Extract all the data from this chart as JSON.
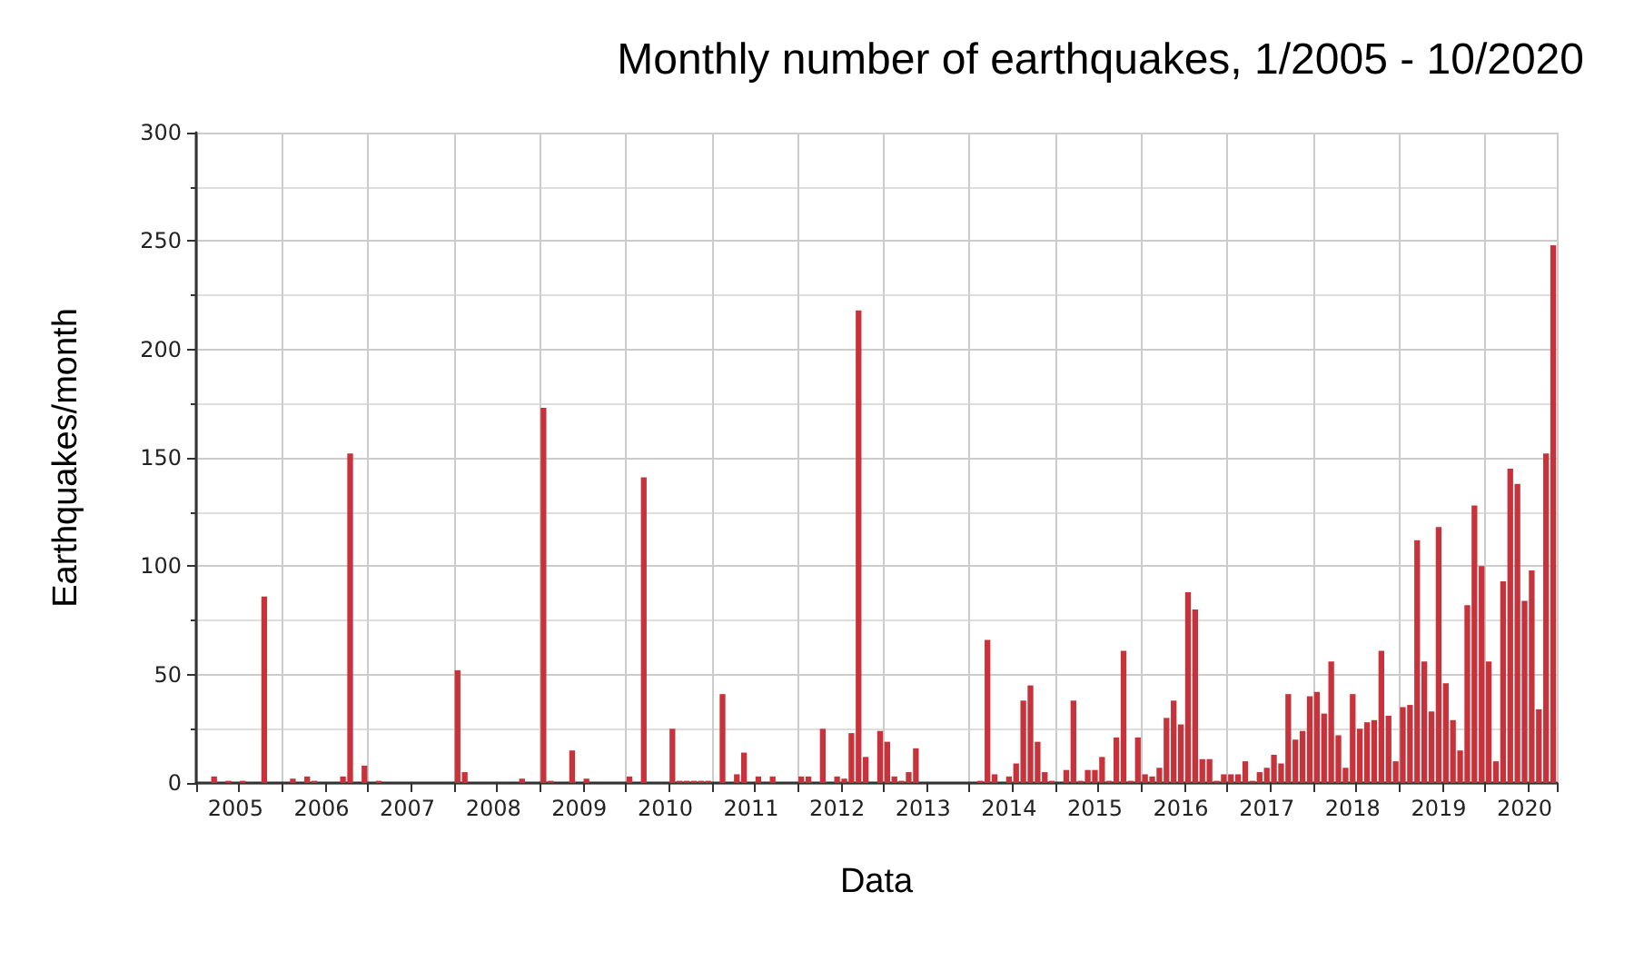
{
  "chart_data": {
    "type": "bar",
    "title": "Monthly number of earthquakes, 1/2005 - 10/2020",
    "xlabel": "Data",
    "ylabel": "Earthquakes/month",
    "categories": [
      null,
      null,
      null,
      null,
      null,
      "2005",
      null,
      null,
      null,
      null,
      null,
      null,
      null,
      null,
      null,
      null,
      null,
      "2006",
      null,
      null,
      null,
      null,
      null,
      null,
      null,
      null,
      null,
      null,
      null,
      "2007",
      null,
      null,
      null,
      null,
      null,
      null,
      null,
      null,
      null,
      null,
      null,
      "2008",
      null,
      null,
      null,
      null,
      null,
      null,
      null,
      null,
      null,
      null,
      null,
      "2009",
      null,
      null,
      null,
      null,
      null,
      null,
      null,
      null,
      null,
      null,
      null,
      "2010",
      null,
      null,
      null,
      null,
      null,
      null,
      null,
      null,
      null,
      null,
      null,
      "2011",
      null,
      null,
      null,
      null,
      null,
      null,
      null,
      null,
      null,
      null,
      null,
      "2012",
      null,
      null,
      null,
      null,
      null,
      null,
      null,
      null,
      null,
      null,
      null,
      "2013",
      null,
      null,
      null,
      null,
      null,
      null,
      null,
      null,
      null,
      null,
      null,
      "2014",
      null,
      null,
      null,
      null,
      null,
      null,
      null,
      null,
      null,
      null,
      null,
      "2015",
      null,
      null,
      null,
      null,
      null,
      null,
      null,
      null,
      null,
      null,
      null,
      "2016",
      null,
      null,
      null,
      null,
      null,
      null,
      null,
      null,
      null,
      null,
      null,
      "2017",
      null,
      null,
      null,
      null,
      null,
      null,
      null,
      null,
      null,
      null,
      null,
      "2018",
      null,
      null,
      null,
      null,
      null,
      null,
      null,
      null,
      null,
      null,
      null,
      "2019",
      null,
      null,
      null,
      null,
      null,
      null,
      null,
      null,
      null,
      null,
      null,
      "2020",
      null,
      null,
      null,
      null
    ],
    "values": [
      0,
      0,
      3,
      0,
      1,
      0,
      1,
      0,
      0,
      86,
      0,
      0,
      0,
      2,
      0,
      3,
      1,
      0,
      0,
      0,
      3,
      152,
      0,
      8,
      0,
      1,
      0,
      0,
      0,
      0,
      0,
      0,
      0,
      0,
      0,
      0,
      52,
      5,
      0,
      0,
      0,
      0,
      0,
      0,
      0,
      2,
      0,
      0,
      173,
      1,
      0,
      0,
      15,
      0,
      2,
      0,
      0,
      0,
      0,
      0,
      3,
      0,
      141,
      0,
      0,
      0,
      25,
      1,
      1,
      1,
      1,
      1,
      0,
      41,
      0,
      4,
      14,
      0,
      3,
      0,
      3,
      0,
      0,
      0,
      3,
      3,
      0,
      25,
      0,
      3,
      2,
      23,
      218,
      12,
      0,
      24,
      19,
      3,
      1,
      5,
      16,
      0,
      0,
      0,
      0,
      0,
      0,
      0,
      0,
      1,
      66,
      4,
      0,
      3,
      9,
      38,
      45,
      19,
      5,
      1,
      0,
      6,
      38,
      1,
      6,
      6,
      12,
      1,
      21,
      61,
      1,
      21,
      4,
      3,
      7,
      30,
      38,
      27,
      88,
      80,
      11,
      11,
      1,
      4,
      4,
      4,
      10,
      1,
      5,
      7,
      13,
      9,
      41,
      20,
      24,
      40,
      42,
      32,
      56,
      22,
      7,
      41,
      25,
      28,
      29,
      61,
      31,
      10,
      35,
      36,
      112,
      56,
      33,
      118,
      46,
      29,
      15,
      82,
      128,
      100,
      56,
      10,
      93,
      145,
      138,
      84,
      98,
      34,
      152,
      248
    ],
    "color": "#c8323a",
    "ylim": [
      0,
      300
    ],
    "yticks": [
      0,
      50,
      100,
      150,
      200,
      250,
      300
    ],
    "grid": true
  }
}
